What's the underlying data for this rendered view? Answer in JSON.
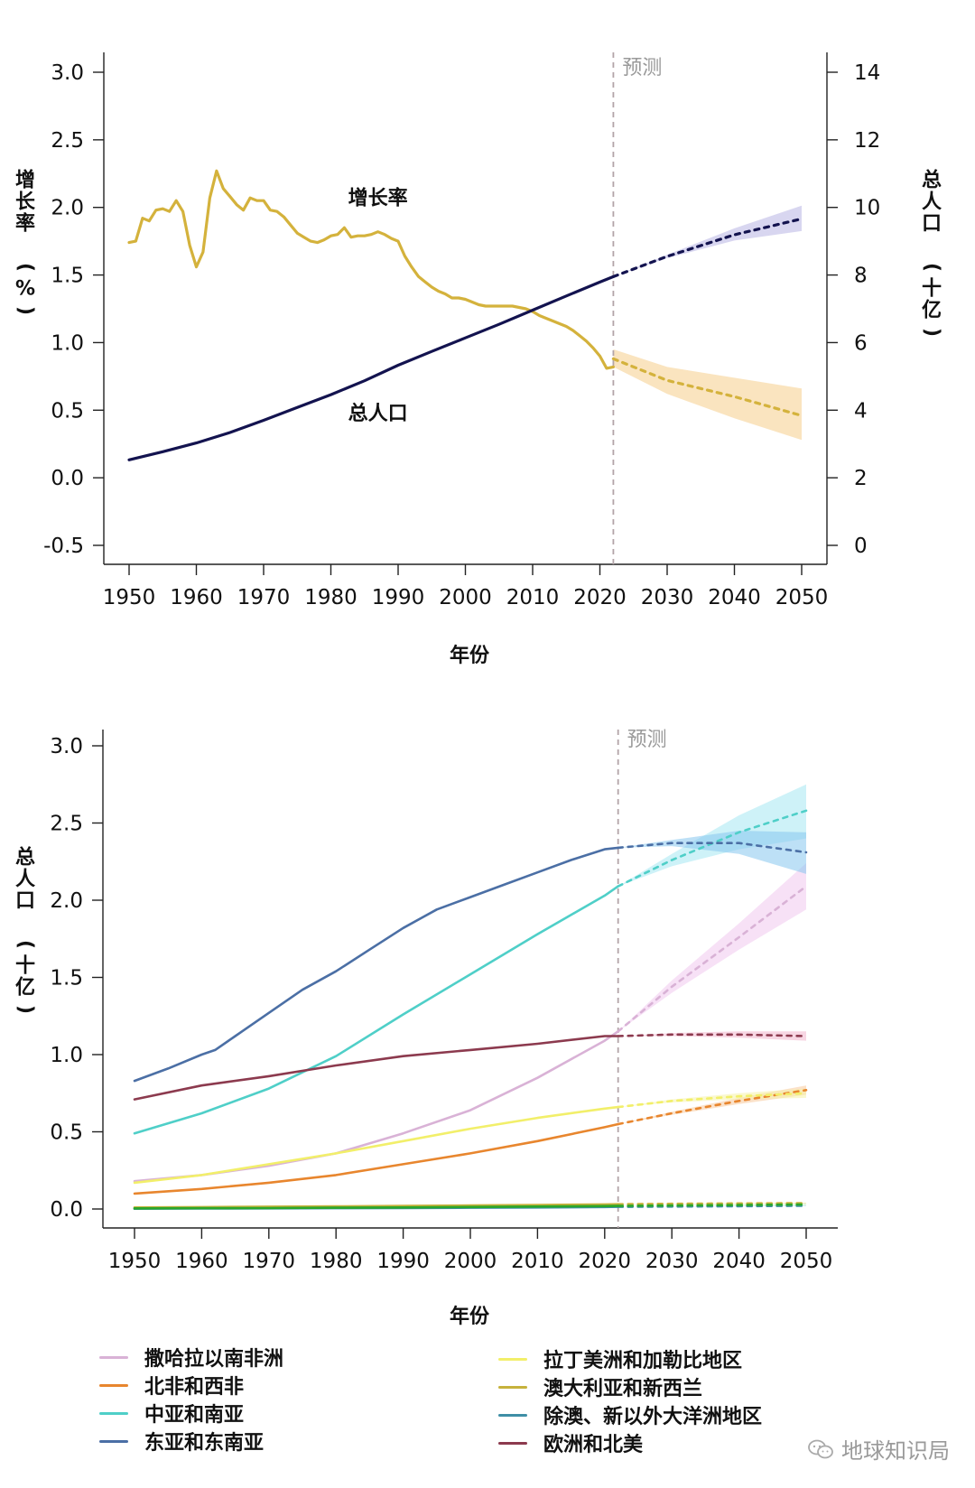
{
  "chart_data": [
    {
      "type": "line",
      "title": "",
      "xlabel": "年份",
      "ylabel_left": "增长率 (%)",
      "ylabel_right": "总人口 (十亿)",
      "xlim": [
        1950,
        2050
      ],
      "ylim_left": [
        -0.5,
        3.0
      ],
      "ylim_right": [
        0,
        14
      ],
      "x_ticks": [
        1950,
        1960,
        1970,
        1980,
        1990,
        2000,
        2010,
        2020,
        2030,
        2040,
        2050
      ],
      "y_ticks_left": [
        -0.5,
        0.0,
        0.5,
        1.0,
        1.5,
        2.0,
        2.5,
        3.0
      ],
      "y_tick_labels_left": [
        "-0.5",
        "0.0",
        "0.5",
        "1.0",
        "1.5",
        "2.0",
        "2.5",
        "3.0"
      ],
      "y_ticks_right": [
        0,
        2,
        4,
        6,
        8,
        10,
        12,
        14
      ],
      "forecast_line_x": 2022,
      "forecast_label": "预测",
      "annotations": [
        {
          "text": "增长率",
          "x": 1987,
          "y_left": 2.02
        },
        {
          "text": "总人口",
          "x": 1987,
          "y_left": 0.43
        }
      ],
      "series": [
        {
          "name": "增长率",
          "axis": "left",
          "color": "#d4b23c",
          "band_color": "#f5ce8a",
          "x": [
            1950,
            1951,
            1952,
            1953,
            1954,
            1955,
            1956,
            1957,
            1958,
            1959,
            1960,
            1961,
            1962,
            1963,
            1964,
            1965,
            1966,
            1967,
            1968,
            1969,
            1970,
            1971,
            1972,
            1973,
            1974,
            1975,
            1976,
            1977,
            1978,
            1979,
            1980,
            1981,
            1982,
            1983,
            1984,
            1985,
            1986,
            1987,
            1988,
            1989,
            1990,
            1991,
            1992,
            1993,
            1994,
            1995,
            1996,
            1997,
            1998,
            1999,
            2000,
            2001,
            2002,
            2003,
            2004,
            2005,
            2006,
            2007,
            2008,
            2009,
            2010,
            2011,
            2012,
            2013,
            2014,
            2015,
            2016,
            2017,
            2018,
            2019,
            2020,
            2021,
            2022
          ],
          "values": [
            1.74,
            1.75,
            1.92,
            1.9,
            1.98,
            1.99,
            1.97,
            2.05,
            1.97,
            1.72,
            1.56,
            1.67,
            2.07,
            2.27,
            2.14,
            2.08,
            2.02,
            1.98,
            2.07,
            2.05,
            2.05,
            1.98,
            1.97,
            1.93,
            1.87,
            1.81,
            1.78,
            1.75,
            1.74,
            1.76,
            1.79,
            1.8,
            1.85,
            1.78,
            1.79,
            1.79,
            1.8,
            1.82,
            1.8,
            1.77,
            1.75,
            1.64,
            1.56,
            1.49,
            1.45,
            1.41,
            1.38,
            1.36,
            1.33,
            1.33,
            1.32,
            1.3,
            1.28,
            1.27,
            1.27,
            1.27,
            1.27,
            1.27,
            1.26,
            1.25,
            1.23,
            1.2,
            1.18,
            1.16,
            1.14,
            1.12,
            1.09,
            1.05,
            1.01,
            0.96,
            0.9,
            0.81,
            0.82
          ],
          "forecast": {
            "x": [
              2022,
              2030,
              2040,
              2050
            ],
            "values": [
              0.88,
              0.72,
              0.6,
              0.46
            ],
            "lower": [
              0.82,
              0.62,
              0.44,
              0.28
            ],
            "upper": [
              0.95,
              0.82,
              0.74,
              0.66
            ]
          }
        },
        {
          "name": "总人口",
          "axis": "right",
          "color": "#13134f",
          "band_color": "#b8b4e3",
          "x": [
            1950,
            1955,
            1960,
            1965,
            1970,
            1975,
            1980,
            1985,
            1990,
            1995,
            2000,
            2005,
            2010,
            2015,
            2020,
            2022
          ],
          "values": [
            2.53,
            2.77,
            3.03,
            3.34,
            3.7,
            4.08,
            4.46,
            4.87,
            5.33,
            5.74,
            6.14,
            6.54,
            6.96,
            7.38,
            7.79,
            7.95
          ],
          "forecast": {
            "x": [
              2022,
              2030,
              2040,
              2050
            ],
            "values": [
              7.95,
              8.55,
              9.19,
              9.66
            ],
            "lower": [
              7.95,
              8.5,
              9.02,
              9.3
            ],
            "upper": [
              7.95,
              8.6,
              9.38,
              10.05
            ]
          }
        }
      ]
    },
    {
      "type": "line",
      "title": "",
      "xlabel": "年份",
      "ylabel": "总人口 (十亿)",
      "xlim": [
        1950,
        2050
      ],
      "ylim": [
        0,
        3.0
      ],
      "x_ticks": [
        1950,
        1960,
        1970,
        1980,
        1990,
        2000,
        2010,
        2020,
        2030,
        2040,
        2050
      ],
      "y_ticks": [
        0.0,
        0.5,
        1.0,
        1.5,
        2.0,
        2.5,
        3.0
      ],
      "y_tick_labels": [
        "0.0",
        "0.5",
        "1.0",
        "1.5",
        "2.0",
        "2.5",
        "3.0"
      ],
      "forecast_line_x": 2022,
      "forecast_label": "预测",
      "series": [
        {
          "name": "撒哈拉以南非洲",
          "color": "#d9b2d6",
          "band_color": "#f1c9ef",
          "x": [
            1950,
            1960,
            1970,
            1980,
            1990,
            2000,
            2010,
            2020,
            2022
          ],
          "values": [
            0.18,
            0.22,
            0.28,
            0.36,
            0.49,
            0.64,
            0.85,
            1.09,
            1.15
          ],
          "forecast": {
            "x": [
              2022,
              2030,
              2040,
              2050
            ],
            "values": [
              1.15,
              1.44,
              1.76,
              2.09
            ],
            "lower": [
              1.15,
              1.4,
              1.68,
              1.94
            ],
            "upper": [
              1.15,
              1.48,
              1.85,
              2.24
            ]
          }
        },
        {
          "name": "北非和西非",
          "color": "#e8862e",
          "band_color": "#f7c99a",
          "x": [
            1950,
            1960,
            1970,
            1980,
            1990,
            2000,
            2010,
            2020,
            2022
          ],
          "values": [
            0.1,
            0.13,
            0.17,
            0.22,
            0.29,
            0.36,
            0.44,
            0.53,
            0.55
          ],
          "forecast": {
            "x": [
              2022,
              2030,
              2040,
              2050
            ],
            "values": [
              0.55,
              0.62,
              0.7,
              0.77
            ],
            "lower": [
              0.55,
              0.61,
              0.68,
              0.74
            ],
            "upper": [
              0.55,
              0.63,
              0.72,
              0.8
            ]
          }
        },
        {
          "name": "中亚和南亚",
          "color": "#4fcfc8",
          "band_color": "#a6e8f2",
          "x": [
            1950,
            1960,
            1970,
            1980,
            1990,
            2000,
            2010,
            2020,
            2022
          ],
          "values": [
            0.49,
            0.62,
            0.78,
            0.99,
            1.26,
            1.52,
            1.78,
            2.03,
            2.09
          ],
          "forecast": {
            "x": [
              2022,
              2030,
              2040,
              2050
            ],
            "values": [
              2.09,
              2.26,
              2.44,
              2.58
            ],
            "lower": [
              2.09,
              2.22,
              2.33,
              2.4
            ],
            "upper": [
              2.09,
              2.3,
              2.55,
              2.75
            ]
          }
        },
        {
          "name": "东亚和东南亚",
          "color": "#4b6fa5",
          "band_color": "#86c6ee",
          "x": [
            1950,
            1955,
            1960,
            1962,
            1965,
            1970,
            1975,
            1980,
            1985,
            1990,
            1995,
            2000,
            2005,
            2010,
            2015,
            2020,
            2022
          ],
          "values": [
            0.83,
            0.91,
            1.0,
            1.03,
            1.12,
            1.27,
            1.42,
            1.54,
            1.68,
            1.82,
            1.94,
            2.02,
            2.1,
            2.18,
            2.26,
            2.33,
            2.34
          ],
          "forecast": {
            "x": [
              2022,
              2030,
              2040,
              2050
            ],
            "values": [
              2.34,
              2.37,
              2.37,
              2.31
            ],
            "lower": [
              2.34,
              2.35,
              2.3,
              2.17
            ],
            "upper": [
              2.34,
              2.39,
              2.45,
              2.44
            ]
          }
        },
        {
          "name": "拉丁美洲和加勒比地区",
          "color": "#f2ef6a",
          "band_color": "#f6f3a8",
          "x": [
            1950,
            1960,
            1970,
            1980,
            1990,
            2000,
            2010,
            2020,
            2022
          ],
          "values": [
            0.17,
            0.22,
            0.29,
            0.36,
            0.44,
            0.52,
            0.59,
            0.65,
            0.66
          ],
          "forecast": {
            "x": [
              2022,
              2030,
              2040,
              2050
            ],
            "values": [
              0.66,
              0.7,
              0.73,
              0.75
            ],
            "lower": [
              0.66,
              0.69,
              0.71,
              0.72
            ],
            "upper": [
              0.66,
              0.71,
              0.75,
              0.78
            ]
          }
        },
        {
          "name": "澳大利亚和新西兰",
          "color": "#c6b23c",
          "band_color": "#e6d890",
          "x": [
            1950,
            1960,
            1970,
            1980,
            1990,
            2000,
            2010,
            2020,
            2022
          ],
          "values": [
            0.01,
            0.012,
            0.015,
            0.017,
            0.02,
            0.023,
            0.026,
            0.03,
            0.031
          ],
          "forecast": {
            "x": [
              2022,
              2030,
              2040,
              2050
            ],
            "values": [
              0.031,
              0.034,
              0.036,
              0.038
            ],
            "lower": [
              0.031,
              0.033,
              0.034,
              0.035
            ],
            "upper": [
              0.031,
              0.035,
              0.038,
              0.041
            ]
          }
        },
        {
          "name": "除澳、新以外大洋洲地区",
          "color": "#3f8fa6",
          "band_color": "#9ccfe0",
          "x": [
            1950,
            1960,
            1970,
            1980,
            1990,
            2000,
            2010,
            2020,
            2022
          ],
          "values": [
            0.002,
            0.003,
            0.004,
            0.005,
            0.006,
            0.008,
            0.01,
            0.013,
            0.014
          ],
          "forecast": {
            "x": [
              2022,
              2030,
              2040,
              2050
            ],
            "values": [
              0.014,
              0.016,
              0.018,
              0.021
            ],
            "lower": [
              0.014,
              0.015,
              0.017,
              0.019
            ],
            "upper": [
              0.014,
              0.017,
              0.02,
              0.023
            ]
          }
        },
        {
          "name": "欧洲和北美",
          "color": "#8c3a4e",
          "band_color": "#f0b5cc",
          "x": [
            1950,
            1960,
            1970,
            1980,
            1990,
            2000,
            2010,
            2020,
            2022
          ],
          "values": [
            0.71,
            0.8,
            0.86,
            0.93,
            0.99,
            1.03,
            1.07,
            1.12,
            1.12
          ],
          "forecast": {
            "x": [
              2022,
              2030,
              2040,
              2050
            ],
            "values": [
              1.12,
              1.13,
              1.13,
              1.12
            ],
            "lower": [
              1.12,
              1.12,
              1.11,
              1.09
            ],
            "upper": [
              1.12,
              1.14,
              1.15,
              1.15
            ]
          }
        },
        {
          "name": "(绿色小区域)",
          "color": "#2aa72a",
          "band_color": "#9fe39f",
          "legend": false,
          "x": [
            1950,
            1960,
            1970,
            1980,
            1990,
            2000,
            2010,
            2020,
            2022
          ],
          "values": [
            0.004,
            0.005,
            0.006,
            0.008,
            0.01,
            0.013,
            0.016,
            0.019,
            0.02
          ],
          "forecast": {
            "x": [
              2022,
              2030,
              2040,
              2050
            ],
            "values": [
              0.02,
              0.023,
              0.026,
              0.029
            ],
            "lower": [
              0.02,
              0.022,
              0.024,
              0.026
            ],
            "upper": [
              0.02,
              0.024,
              0.028,
              0.032
            ]
          }
        }
      ]
    }
  ],
  "legend": {
    "left": [
      {
        "label": "撒哈拉以南非洲",
        "color": "#d9b2d6"
      },
      {
        "label": "北非和西非",
        "color": "#e8862e"
      },
      {
        "label": "中亚和南亚",
        "color": "#4fcfc8"
      },
      {
        "label": "东亚和东南亚",
        "color": "#4b6fa5"
      }
    ],
    "right": [
      {
        "label": "拉丁美洲和加勒比地区",
        "color": "#f2ef6a"
      },
      {
        "label": "澳大利亚和新西兰",
        "color": "#c6b23c"
      },
      {
        "label": "除澳、新以外大洋洲地区",
        "color": "#3f8fa6"
      },
      {
        "label": "欧洲和北美",
        "color": "#8c3a4e"
      }
    ]
  },
  "watermark": {
    "text": "地球知识局"
  }
}
